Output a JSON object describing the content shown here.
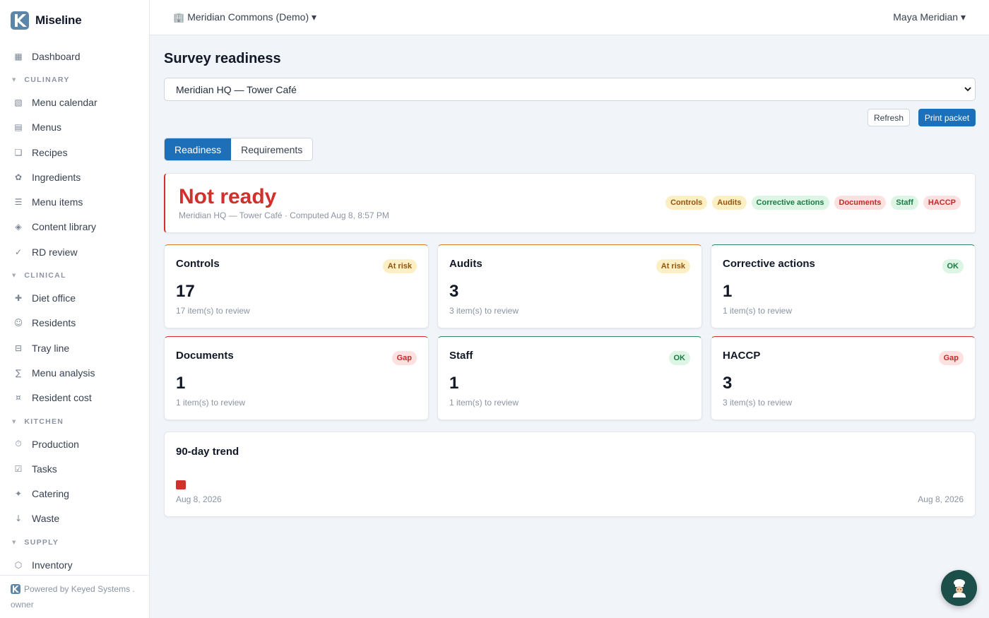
{
  "app": {
    "name": "Miseline"
  },
  "sidebar": {
    "items": [
      {
        "type": "item",
        "label": "Dashboard",
        "icon": "▦",
        "icon_name": "dashboard-icon"
      },
      {
        "type": "section",
        "label": "CULINARY"
      },
      {
        "type": "item",
        "label": "Menu calendar",
        "icon": "▧",
        "icon_name": "calendar-icon"
      },
      {
        "type": "item",
        "label": "Menus",
        "icon": "▤",
        "icon_name": "menus-icon"
      },
      {
        "type": "item",
        "label": "Recipes",
        "icon": "❏",
        "icon_name": "recipes-icon"
      },
      {
        "type": "item",
        "label": "Ingredients",
        "icon": "✿",
        "icon_name": "ingredients-icon"
      },
      {
        "type": "item",
        "label": "Menu items",
        "icon": "☰",
        "icon_name": "menu-items-icon"
      },
      {
        "type": "item",
        "label": "Content library",
        "icon": "◈",
        "icon_name": "content-library-icon"
      },
      {
        "type": "item",
        "label": "RD review",
        "icon": "✓",
        "icon_name": "check-icon"
      },
      {
        "type": "section",
        "label": "CLINICAL"
      },
      {
        "type": "item",
        "label": "Diet office",
        "icon": "✚",
        "icon_name": "diet-office-icon"
      },
      {
        "type": "item",
        "label": "Residents",
        "icon": "☺",
        "icon_name": "residents-icon"
      },
      {
        "type": "item",
        "label": "Tray line",
        "icon": "⊟",
        "icon_name": "tray-line-icon"
      },
      {
        "type": "item",
        "label": "Menu analysis",
        "icon": "∑",
        "icon_name": "sigma-icon"
      },
      {
        "type": "item",
        "label": "Resident cost",
        "icon": "¤",
        "icon_name": "cost-icon"
      },
      {
        "type": "section",
        "label": "KITCHEN"
      },
      {
        "type": "item",
        "label": "Production",
        "icon": "⏱",
        "icon_name": "timer-icon"
      },
      {
        "type": "item",
        "label": "Tasks",
        "icon": "☑",
        "icon_name": "tasks-icon"
      },
      {
        "type": "item",
        "label": "Catering",
        "icon": "✦",
        "icon_name": "catering-icon"
      },
      {
        "type": "item",
        "label": "Waste",
        "icon": "↓",
        "icon_name": "waste-icon"
      },
      {
        "type": "section",
        "label": "SUPPLY"
      },
      {
        "type": "item",
        "label": "Inventory",
        "icon": "⬡",
        "icon_name": "inventory-icon"
      }
    ],
    "footer": {
      "powered": "Powered by Keyed Systems .",
      "role": "owner"
    }
  },
  "topbar": {
    "org_label": "Meridian Commons (Demo) ▾",
    "org_icon": "🏢",
    "user_label": "Maya Meridian ▾"
  },
  "page": {
    "title": "Survey readiness",
    "location": "Meridian HQ — Tower Café",
    "refresh_label": "Refresh",
    "print_label": "Print packet",
    "tabs": [
      {
        "label": "Readiness",
        "active": true
      },
      {
        "label": "Requirements",
        "active": false
      }
    ]
  },
  "status": {
    "headline": "Not ready",
    "subtitle": "Meridian HQ — Tower Café · Computed Aug 8, 8:57 PM",
    "chips": [
      {
        "label": "Controls",
        "state": "risk"
      },
      {
        "label": "Audits",
        "state": "risk"
      },
      {
        "label": "Corrective actions",
        "state": "ok"
      },
      {
        "label": "Documents",
        "state": "gap"
      },
      {
        "label": "Staff",
        "state": "ok"
      },
      {
        "label": "HACCP",
        "state": "gap"
      }
    ]
  },
  "cards": [
    {
      "title": "Controls",
      "badge": "At risk",
      "state": "risk",
      "count": "17",
      "desc": "17 item(s) to review"
    },
    {
      "title": "Audits",
      "badge": "At risk",
      "state": "risk",
      "count": "3",
      "desc": "3 item(s) to review"
    },
    {
      "title": "Corrective actions",
      "badge": "OK",
      "state": "ok",
      "count": "1",
      "desc": "1 item(s) to review"
    },
    {
      "title": "Documents",
      "badge": "Gap",
      "state": "gap",
      "count": "1",
      "desc": "1 item(s) to review"
    },
    {
      "title": "Staff",
      "badge": "OK",
      "state": "ok",
      "count": "1",
      "desc": "1 item(s) to review"
    },
    {
      "title": "HACCP",
      "badge": "Gap",
      "state": "gap",
      "count": "3",
      "desc": "3 item(s) to review"
    }
  ],
  "trend": {
    "title": "90-day trend",
    "start_label": "Aug 8, 2026",
    "end_label": "Aug 8, 2026",
    "points": [
      {
        "date": "Aug 8, 2026",
        "state": "gap"
      }
    ]
  },
  "colors": {
    "brand": "#1d6fb8",
    "not_ready": "#d0312d",
    "risk_bg": "#fdefc4",
    "ok_bg": "#dcf5e4",
    "gap_bg": "#fde0e0"
  },
  "fab": {
    "icon_name": "chef-icon",
    "glyph": "🧑‍🍳"
  }
}
